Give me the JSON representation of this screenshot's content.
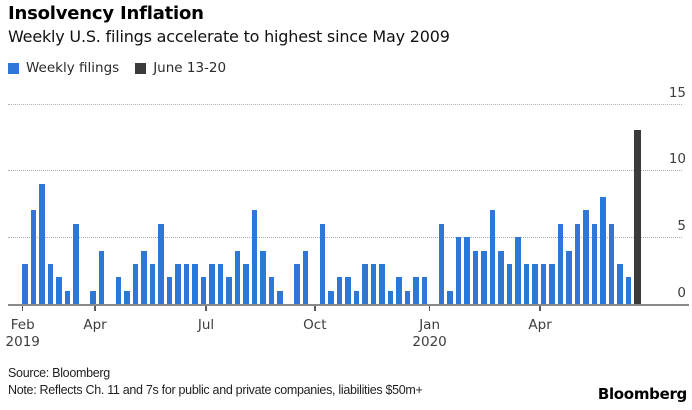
{
  "header": {
    "title": "Insolvency Inflation",
    "subtitle": "Weekly U.S. filings accelerate to highest since May 2009"
  },
  "legend": {
    "items": [
      {
        "label": "Weekly filings",
        "color": "#2d78d7"
      },
      {
        "label": "June 13-20",
        "color": "#3b3b3b"
      }
    ]
  },
  "chart_data": {
    "type": "bar",
    "title": "Insolvency Inflation",
    "subtitle": "Weekly U.S. filings accelerate to highest since May 2009",
    "xlabel": "",
    "ylabel": "",
    "ylim": [
      0,
      15
    ],
    "yticks": [
      0,
      5,
      10,
      15
    ],
    "grid": "horizontal dotted, y-labels on right",
    "legend_position": "top-left",
    "x_unit": "weeks from early Feb 2019 to June 2020",
    "series": [
      {
        "name": "Weekly filings",
        "color": "#2d78d7",
        "values": [
          3,
          7,
          9,
          3,
          2,
          1,
          6,
          0,
          1,
          4,
          0,
          2,
          1,
          3,
          4,
          3,
          6,
          2,
          3,
          3,
          3,
          2,
          3,
          3,
          2,
          4,
          3,
          7,
          4,
          2,
          1,
          0,
          3,
          4,
          0,
          6,
          1,
          2,
          2,
          1,
          3,
          3,
          3,
          1,
          2,
          1,
          2,
          2,
          0,
          6,
          1,
          5,
          5,
          4,
          4,
          7,
          4,
          3,
          5,
          3,
          3,
          3,
          3,
          6,
          4,
          6,
          7,
          6,
          8,
          6,
          3,
          2
        ]
      },
      {
        "name": "June 13-20",
        "color": "#3b3b3b",
        "values": [
          13
        ],
        "note": "single dark bar plotted immediately after the last weekly bar"
      }
    ],
    "x_axis": {
      "ticks": [
        {
          "label": "Feb",
          "sublabel": "2019",
          "week_index": -0.27
        },
        {
          "label": "Apr",
          "sublabel": "",
          "week_index": 8.24
        },
        {
          "label": "Jul",
          "sublabel": "",
          "week_index": 21.3
        },
        {
          "label": "Oct",
          "sublabel": "",
          "week_index": 34.1
        },
        {
          "label": "Jan",
          "sublabel": "2020",
          "week_index": 47.6
        },
        {
          "label": "Apr",
          "sublabel": "",
          "week_index": 60.6
        }
      ]
    }
  },
  "footer": {
    "source": "Source: Bloomberg",
    "note": "Note: Reflects Ch. 11 and 7s for public and private companies, liabilities $50m+",
    "brand": "Bloomberg"
  }
}
